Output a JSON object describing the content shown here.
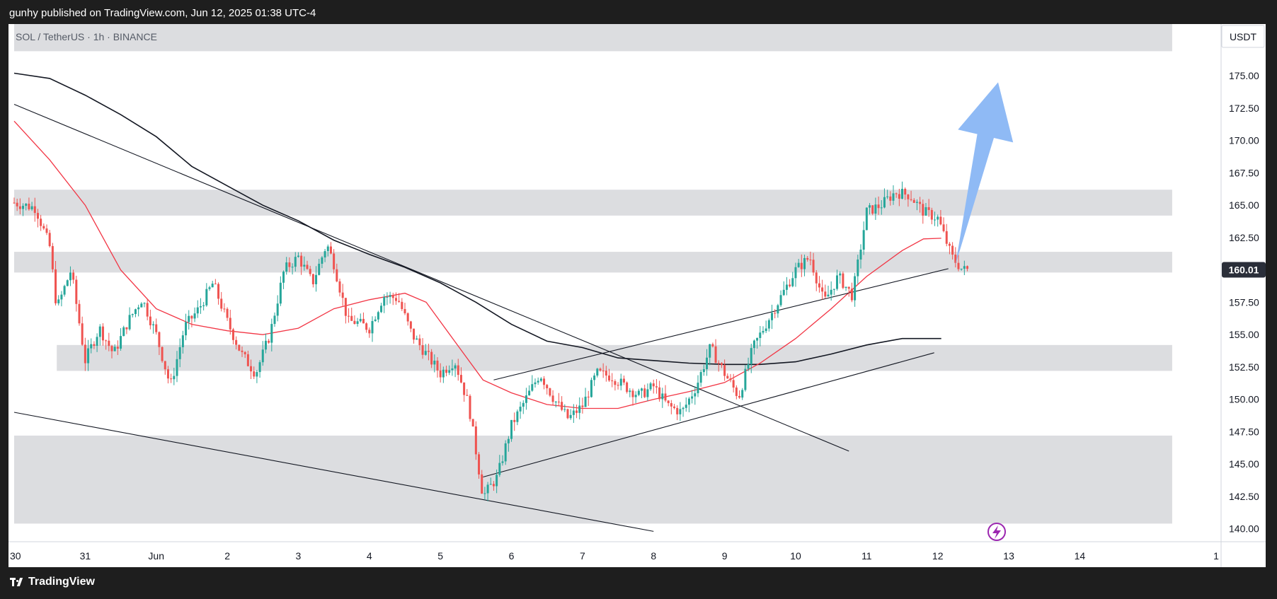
{
  "header": {
    "publish_line": "gunhy published on TradingView.com, Jun 12, 2025 01:38 UTC-4"
  },
  "footer": {
    "brand": "TradingView"
  },
  "colors": {
    "bull": "#26a69a",
    "bear": "#ef5350",
    "ma_short": "#f23645",
    "ma_long": "#131722",
    "zone": "#dcdde0",
    "arrow": "#8fbaf5",
    "price_tag": "#2a2e39",
    "lightning": "#9c27b0"
  },
  "chart_data": {
    "type": "candlestick",
    "symbol": "SOL / TetherUS · 1h · BINANCE",
    "currency": "USDT",
    "last_price": 160.01,
    "last_price_label": "160.01",
    "y_range": [
      139.0,
      179.0
    ],
    "y_ticks": [
      "175.00",
      "172.50",
      "170.00",
      "167.50",
      "165.00",
      "162.50",
      "157.50",
      "155.00",
      "152.50",
      "150.00",
      "147.50",
      "145.00",
      "142.50",
      "140.00"
    ],
    "y_tick_values": [
      175,
      172.5,
      170,
      167.5,
      165,
      162.5,
      157.5,
      155,
      152.5,
      150,
      147.5,
      145,
      142.5,
      140
    ],
    "x_range": [
      0,
      16.45
    ],
    "x_ticks": [
      {
        "t": 0,
        "label": "30"
      },
      {
        "t": 1,
        "label": "31"
      },
      {
        "t": 2,
        "label": "Jun"
      },
      {
        "t": 3,
        "label": "2"
      },
      {
        "t": 4,
        "label": "3"
      },
      {
        "t": 5,
        "label": "4"
      },
      {
        "t": 6,
        "label": "5"
      },
      {
        "t": 7,
        "label": "6"
      },
      {
        "t": 8,
        "label": "7"
      },
      {
        "t": 9,
        "label": "8"
      },
      {
        "t": 10,
        "label": "9"
      },
      {
        "t": 11,
        "label": "10"
      },
      {
        "t": 12,
        "label": "11"
      },
      {
        "t": 13,
        "label": "12"
      },
      {
        "t": 14,
        "label": "13"
      },
      {
        "t": 15,
        "label": "14"
      },
      {
        "t": 16,
        "label": "1"
      }
    ],
    "close_path": [
      [
        0,
        165.2
      ],
      [
        0.3,
        164.8
      ],
      [
        0.5,
        161.8
      ],
      [
        0.6,
        157
      ],
      [
        0.8,
        160
      ],
      [
        1.0,
        153
      ],
      [
        1.2,
        155.5
      ],
      [
        1.4,
        153.5
      ],
      [
        1.6,
        156
      ],
      [
        1.8,
        157.8
      ],
      [
        2.0,
        155
      ],
      [
        2.2,
        151
      ],
      [
        2.4,
        155.6
      ],
      [
        2.6,
        157
      ],
      [
        2.8,
        159
      ],
      [
        3.0,
        156
      ],
      [
        3.2,
        153.5
      ],
      [
        3.4,
        152
      ],
      [
        3.6,
        155
      ],
      [
        3.8,
        160
      ],
      [
        4.0,
        161
      ],
      [
        4.2,
        159
      ],
      [
        4.4,
        162
      ],
      [
        4.5,
        160.5
      ],
      [
        4.7,
        156
      ],
      [
        4.8,
        156
      ],
      [
        5.0,
        155.5
      ],
      [
        5.2,
        158
      ],
      [
        5.4,
        157.8
      ],
      [
        5.6,
        155
      ],
      [
        5.8,
        153.5
      ],
      [
        6.0,
        152
      ],
      [
        6.2,
        153
      ],
      [
        6.4,
        149.5
      ],
      [
        6.6,
        142.5
      ],
      [
        6.8,
        144
      ],
      [
        7.0,
        148
      ],
      [
        7.2,
        150
      ],
      [
        7.4,
        152
      ],
      [
        7.6,
        150
      ],
      [
        7.8,
        148.5
      ],
      [
        8.0,
        149.5
      ],
      [
        8.2,
        152
      ],
      [
        8.4,
        151.8
      ],
      [
        8.6,
        151
      ],
      [
        8.8,
        150.3
      ],
      [
        9.0,
        151
      ],
      [
        9.2,
        149.5
      ],
      [
        9.4,
        149
      ],
      [
        9.6,
        151
      ],
      [
        9.8,
        154
      ],
      [
        10.0,
        152
      ],
      [
        10.2,
        150.2
      ],
      [
        10.4,
        154
      ],
      [
        10.6,
        156
      ],
      [
        10.8,
        158
      ],
      [
        11.0,
        160
      ],
      [
        11.2,
        161
      ],
      [
        11.4,
        157.5
      ],
      [
        11.6,
        159.5
      ],
      [
        11.8,
        158
      ],
      [
        12.0,
        164.5
      ],
      [
        12.2,
        165
      ],
      [
        12.4,
        166
      ],
      [
        12.6,
        165.8
      ],
      [
        12.8,
        164.5
      ],
      [
        13.0,
        164
      ],
      [
        13.2,
        161
      ],
      [
        13.35,
        160
      ],
      [
        13.45,
        160.01
      ]
    ],
    "ma_short": [
      [
        0,
        171.5
      ],
      [
        0.5,
        168.5
      ],
      [
        1,
        165
      ],
      [
        1.5,
        160
      ],
      [
        2,
        157
      ],
      [
        2.5,
        155.8
      ],
      [
        3,
        155.3
      ],
      [
        3.5,
        155
      ],
      [
        4,
        155.5
      ],
      [
        4.5,
        157
      ],
      [
        5,
        157.7
      ],
      [
        5.5,
        158.2
      ],
      [
        5.8,
        157.5
      ],
      [
        6.2,
        154.5
      ],
      [
        6.6,
        151.5
      ],
      [
        7,
        150.5
      ],
      [
        7.5,
        149.6
      ],
      [
        8,
        149.3
      ],
      [
        8.5,
        149.3
      ],
      [
        9,
        150
      ],
      [
        9.5,
        150.6
      ],
      [
        10,
        151.3
      ],
      [
        10.5,
        152.8
      ],
      [
        11,
        154.7
      ],
      [
        11.5,
        157
      ],
      [
        12,
        159.5
      ],
      [
        12.5,
        161.5
      ],
      [
        12.8,
        162.4
      ],
      [
        13.05,
        162.45
      ]
    ],
    "ma_long": [
      [
        0,
        175.2
      ],
      [
        0.5,
        174.8
      ],
      [
        1,
        173.5
      ],
      [
        1.5,
        172
      ],
      [
        2,
        170.3
      ],
      [
        2.5,
        168
      ],
      [
        3,
        166.5
      ],
      [
        3.5,
        165
      ],
      [
        4,
        163.8
      ],
      [
        4.5,
        162.3
      ],
      [
        5,
        161.2
      ],
      [
        5.5,
        160.2
      ],
      [
        6,
        159
      ],
      [
        6.5,
        157.5
      ],
      [
        7,
        155.8
      ],
      [
        7.5,
        154.5
      ],
      [
        8,
        154
      ],
      [
        8.5,
        153.2
      ],
      [
        9,
        153
      ],
      [
        9.5,
        152.8
      ],
      [
        10,
        152.7
      ],
      [
        10.5,
        152.7
      ],
      [
        11,
        152.9
      ],
      [
        11.5,
        153.5
      ],
      [
        12,
        154.2
      ],
      [
        12.5,
        154.7
      ],
      [
        13.05,
        154.7
      ]
    ],
    "trendlines": [
      {
        "from": [
          0,
          172.8
        ],
        "to": [
          11.75,
          146.0
        ]
      },
      {
        "from": [
          0,
          149.0
        ],
        "to": [
          9.0,
          139.8
        ]
      },
      {
        "from": [
          6.6,
          144.0
        ],
        "to": [
          12.95,
          153.6
        ]
      },
      {
        "from": [
          6.75,
          151.5
        ],
        "to": [
          13.15,
          160.1
        ]
      }
    ],
    "zones": [
      {
        "from": 0,
        "to": 16.3,
        "low": 176.9,
        "high": 179.0
      },
      {
        "from": 0,
        "to": 16.3,
        "low": 164.2,
        "high": 166.2
      },
      {
        "from": 0,
        "to": 16.3,
        "low": 159.8,
        "high": 161.4
      },
      {
        "from": 0.6,
        "to": 16.3,
        "low": 152.2,
        "high": 154.2
      },
      {
        "from": 0,
        "to": 16.3,
        "low": 140.4,
        "high": 147.2
      }
    ],
    "arrow": {
      "tail": [
        13.25,
        160.4
      ],
      "tip": [
        13.85,
        174.5
      ]
    },
    "grid": false,
    "legend": "none"
  }
}
